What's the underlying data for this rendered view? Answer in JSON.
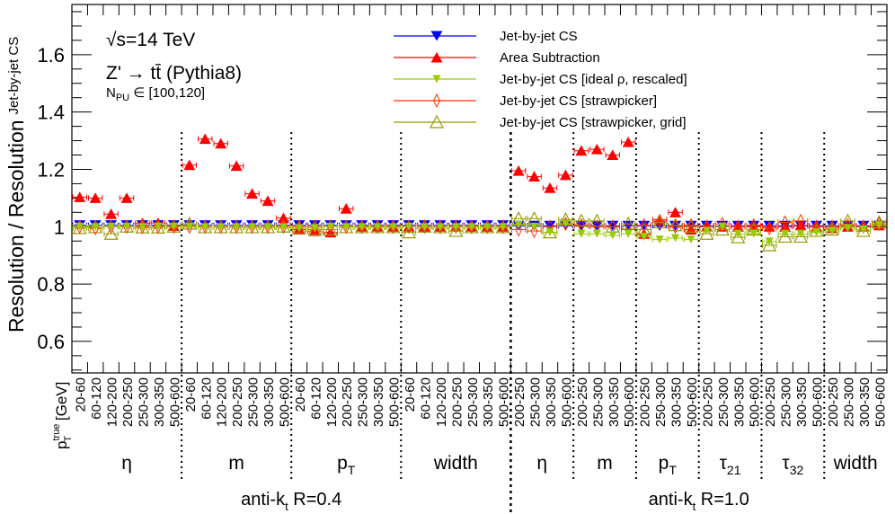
{
  "chart_data": {
    "type": "scatter",
    "title": "",
    "annotations": {
      "energy": "√s=14 TeV",
      "process": "Z' → tt̄ (Pythia8)",
      "pileup_prefix": "N",
      "pileup_sub": "PU",
      "pileup_suffix": " ∈ [100,120]"
    },
    "ylabel_main": "Resolution / Resolution",
    "ylabel_sub": "Jet-by-jet CS",
    "xlabel_main": "p",
    "xlabel_sub": "T",
    "xlabel_sup": "true",
    "xlabel_unit": " [GeV]",
    "ylim": [
      0.49,
      1.775
    ],
    "yticks": [
      "0.6",
      "0.8",
      "1",
      "1.2",
      "1.4",
      "1.6"
    ],
    "grid": false,
    "legend_position": "top-center",
    "categories": [
      "20-60",
      "60-120",
      "120-200",
      "200-250",
      "250-300",
      "300-350",
      "500-600",
      "20-60",
      "60-120",
      "120-200",
      "200-250",
      "250-300",
      "300-350",
      "500-600",
      "20-60",
      "60-120",
      "120-200",
      "200-250",
      "250-300",
      "300-350",
      "500-600",
      "20-60",
      "60-120",
      "120-200",
      "200-250",
      "250-300",
      "300-350",
      "500-600",
      "200-250",
      "250-300",
      "300-350",
      "500-600",
      "200-250",
      "250-300",
      "300-350",
      "500-600",
      "200-250",
      "250-300",
      "300-350",
      "500-600",
      "200-250",
      "250-300",
      "300-350",
      "500-600",
      "200-250",
      "250-300",
      "300-350",
      "500-600",
      "200-250",
      "250-300",
      "300-350",
      "500-600"
    ],
    "groups": [
      {
        "label": "η",
        "sub": "",
        "bins": 7
      },
      {
        "label": "m",
        "sub": "",
        "bins": 7
      },
      {
        "label": "p",
        "sub": "T",
        "bins": 7
      },
      {
        "label": "width",
        "sub": "",
        "bins": 7
      },
      {
        "label": "η",
        "sub": "",
        "bins": 4
      },
      {
        "label": "m",
        "sub": "",
        "bins": 4
      },
      {
        "label": "p",
        "sub": "T",
        "bins": 4
      },
      {
        "label": "τ",
        "sub": "21",
        "bins": 4
      },
      {
        "label": "τ",
        "sub": "32",
        "bins": 4
      },
      {
        "label": "width",
        "sub": "",
        "bins": 4
      }
    ],
    "supergroups": [
      {
        "label_main": "anti-k",
        "label_sub": "t",
        "label_suffix": " R=0.4",
        "groups": 4
      },
      {
        "label_main": "anti-k",
        "label_sub": "t",
        "label_suffix": " R=1.0",
        "groups": 6
      }
    ],
    "series": [
      {
        "name": "Jet-by-jet CS",
        "color": "#0000ff",
        "marker": "triangle-down-filled",
        "values": [
          1.005,
          1.005,
          1.005,
          1.005,
          1.005,
          1.005,
          1.005,
          1.005,
          1.005,
          1.005,
          1.005,
          1.005,
          1.005,
          1.005,
          1.005,
          1.005,
          1.005,
          1.005,
          1.005,
          1.005,
          1.005,
          1.005,
          1.005,
          1.005,
          1.005,
          1.005,
          1.005,
          1.005,
          1.003,
          1.003,
          1.003,
          1.003,
          1.003,
          1.003,
          1.003,
          1.003,
          1.003,
          1.003,
          1.003,
          1.003,
          1.003,
          1.003,
          1.003,
          1.003,
          1.003,
          1.003,
          1.003,
          1.003,
          1.003,
          1.003,
          1.003,
          1.003
        ]
      },
      {
        "name": "Area Subtraction",
        "color": "#ff0000",
        "marker": "triangle-up-filled",
        "values": [
          1.103,
          1.1,
          1.044,
          1.1,
          1.012,
          1.013,
          1.003,
          1.215,
          1.306,
          1.29,
          1.212,
          1.115,
          1.09,
          1.03,
          0.99,
          0.985,
          0.98,
          1.063,
          1.0,
          1.0,
          1.0,
          1.0,
          1.0,
          1.0,
          1.0,
          1.0,
          1.0,
          1.0,
          1.195,
          1.175,
          1.135,
          1.18,
          1.265,
          1.27,
          1.25,
          1.295,
          0.975,
          1.025,
          1.05,
          0.99,
          1.0,
          1.0,
          1.0,
          1.0,
          1.0,
          1.0,
          1.005,
          1.0,
          0.995,
          1.0,
          1.0,
          1.005
        ]
      },
      {
        "name": "Jet-by-jet CS [ideal   ρ, rescaled]",
        "color": "#99cc00",
        "marker": "triangle-down-small",
        "values": [
          1.0,
          0.998,
          1.0,
          1.0,
          0.998,
          1.0,
          1.0,
          1.0,
          0.998,
          0.998,
          0.998,
          0.998,
          0.998,
          0.998,
          0.995,
          0.995,
          1.0,
          0.998,
          0.998,
          0.998,
          0.998,
          1.0,
          0.998,
          0.998,
          0.998,
          0.998,
          0.998,
          0.998,
          1.006,
          1.0,
          0.98,
          1.01,
          0.975,
          0.975,
          0.97,
          0.975,
          0.965,
          0.955,
          0.96,
          0.955,
          0.985,
          1.0,
          0.975,
          0.975,
          0.948,
          0.975,
          0.975,
          0.98,
          0.985,
          0.995,
          0.99,
          1.005
        ]
      },
      {
        "name": "Jet-by-jet CS [strawpicker]",
        "color": "#ff3300",
        "marker": "diamond-open",
        "values": [
          1.0,
          0.995,
          1.0,
          1.0,
          1.0,
          1.0,
          1.0,
          1.0,
          1.0,
          1.0,
          1.0,
          1.0,
          1.0,
          1.0,
          1.0,
          1.0,
          1.0,
          1.0,
          1.0,
          1.0,
          1.0,
          1.0,
          1.0,
          1.0,
          1.0,
          1.0,
          1.0,
          1.0,
          0.99,
          0.985,
          1.0,
          1.01,
          1.005,
          1.0,
          1.0,
          0.99,
          1.005,
          1.02,
          1.0,
          1.005,
          1.0,
          1.01,
          1.0,
          1.005,
          0.995,
          1.015,
          1.02,
          1.0,
          1.0,
          1.005,
          1.0,
          1.01
        ]
      },
      {
        "name": "Jet-by-jet CS [strawpicker, grid]",
        "color": "#999900",
        "marker": "triangle-up-open",
        "values": [
          0.995,
          0.998,
          0.975,
          1.0,
          0.997,
          0.997,
          1.0,
          1.01,
          0.998,
          0.998,
          0.998,
          0.998,
          0.998,
          1.0,
          0.995,
          0.99,
          0.99,
          0.998,
          0.998,
          0.998,
          0.998,
          0.98,
          1.0,
          0.998,
          0.985,
          0.998,
          0.998,
          0.998,
          1.028,
          1.028,
          0.98,
          1.025,
          1.02,
          1.02,
          1.0,
          1.01,
          0.99,
          1.015,
          1.005,
          1.0,
          0.975,
          0.99,
          0.963,
          0.99,
          0.935,
          0.965,
          0.965,
          0.985,
          0.99,
          1.02,
          0.985,
          1.015
        ]
      }
    ]
  }
}
